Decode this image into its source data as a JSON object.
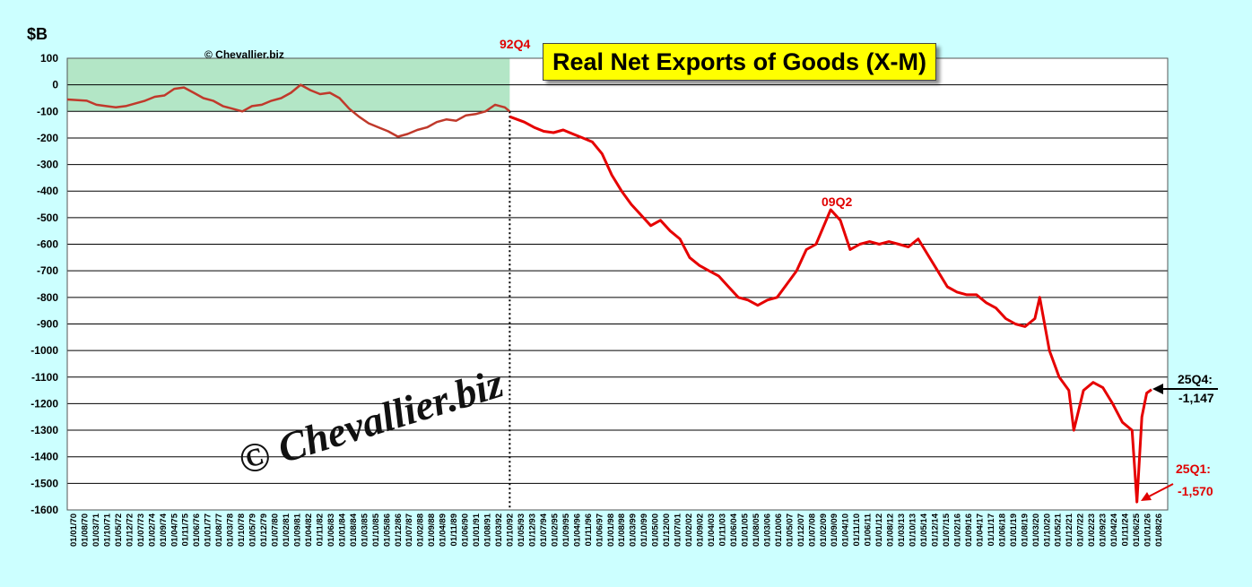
{
  "copyright_small": "© Chevallier.biz",
  "watermark": "© Chevallier.biz",
  "colors": {
    "background": "#ccffff",
    "plot_background": "#ffffff",
    "shade_fill": "#b3e6c6",
    "series_pre": "#c0392b",
    "series_post": "#e60000",
    "annotation_red": "#e00000"
  },
  "annotations": {
    "q92": "92Q4",
    "q09": "09Q2",
    "q25q4_label": "25Q4:",
    "q25q4_value": "-1,147",
    "q25q1_label": "25Q1:",
    "q25q1_value": "-1,570"
  },
  "chart_data": {
    "type": "line",
    "title": "Real Net Exports of Goods (X-M)",
    "ylabel": "$B",
    "ylim": [
      -1600,
      100
    ],
    "yticks": [
      100,
      0,
      -100,
      -200,
      -300,
      -400,
      -500,
      -600,
      -700,
      -800,
      -900,
      -1000,
      -1100,
      -1200,
      -1300,
      -1400,
      -1500,
      -1600
    ],
    "grid": true,
    "xticks": [
      "01/01/70",
      "01/08/70",
      "01/03/71",
      "01/10/71",
      "01/05/72",
      "01/12/72",
      "01/07/73",
      "01/02/74",
      "01/09/74",
      "01/04/75",
      "01/11/75",
      "01/06/76",
      "01/01/77",
      "01/08/77",
      "01/03/78",
      "01/10/78",
      "01/05/79",
      "01/12/79",
      "01/07/80",
      "01/02/81",
      "01/09/81",
      "01/04/82",
      "01/11/82",
      "01/06/83",
      "01/01/84",
      "01/08/84",
      "01/03/85",
      "01/10/85",
      "01/05/86",
      "01/12/86",
      "01/07/87",
      "01/02/88",
      "01/09/88",
      "01/04/89",
      "01/11/89",
      "01/06/90",
      "01/01/91",
      "01/08/91",
      "01/03/92",
      "01/10/92",
      "01/05/93",
      "01/12/93",
      "01/07/94",
      "01/02/95",
      "01/09/95",
      "01/04/96",
      "01/11/96",
      "01/06/97",
      "01/01/98",
      "01/08/98",
      "01/03/99",
      "01/10/99",
      "01/05/00",
      "01/12/00",
      "01/07/01",
      "01/02/02",
      "01/09/02",
      "01/04/03",
      "01/11/03",
      "01/06/04",
      "01/01/05",
      "01/08/05",
      "01/03/06",
      "01/10/06",
      "01/05/07",
      "01/12/07",
      "01/07/08",
      "01/02/09",
      "01/09/09",
      "01/04/10",
      "01/11/10",
      "01/06/11",
      "01/01/12",
      "01/08/12",
      "01/03/13",
      "01/10/13",
      "01/05/14",
      "01/12/14",
      "01/07/15",
      "01/02/16",
      "01/09/16",
      "01/04/17",
      "01/11/17",
      "01/06/18",
      "01/01/19",
      "01/08/19",
      "01/03/20",
      "01/10/20",
      "01/05/21",
      "01/12/21",
      "01/07/22",
      "01/02/23",
      "01/09/23",
      "01/04/24",
      "01/11/24",
      "01/06/25",
      "01/01/26",
      "01/08/26"
    ],
    "highlight_period": {
      "from": 1970.0,
      "to": 1992.75,
      "y_range": [
        -100,
        100
      ]
    },
    "marker_line_x": 1992.75,
    "series": [
      {
        "period": "1970-1992",
        "x": [
          1970.0,
          1971.0,
          1971.5,
          1972.0,
          1972.5,
          1973.0,
          1974.0,
          1974.5,
          1975.0,
          1975.5,
          1976.0,
          1976.5,
          1977.0,
          1977.5,
          1978.0,
          1978.5,
          1979.0,
          1979.5,
          1980.0,
          1980.5,
          1981.0,
          1981.5,
          1982.0,
          1982.5,
          1983.0,
          1983.5,
          1984.0,
          1984.5,
          1985.0,
          1985.5,
          1986.0,
          1986.5,
          1987.0,
          1987.5,
          1988.0,
          1988.5,
          1989.0,
          1989.5,
          1990.0,
          1990.5,
          1991.0,
          1991.5,
          1992.0,
          1992.5,
          1992.75
        ],
        "values": [
          -55,
          -60,
          -75,
          -80,
          -85,
          -80,
          -60,
          -45,
          -40,
          -15,
          -10,
          -30,
          -50,
          -60,
          -80,
          -90,
          -100,
          -80,
          -75,
          -60,
          -50,
          -30,
          0,
          -20,
          -35,
          -30,
          -50,
          -90,
          -120,
          -145,
          -160,
          -175,
          -195,
          -185,
          -170,
          -160,
          -140,
          -130,
          -135,
          -115,
          -110,
          -100,
          -75,
          -85,
          -100
        ]
      },
      {
        "period": "1992-2025",
        "x": [
          1992.75,
          1993.5,
          1994.0,
          1994.5,
          1995.0,
          1995.5,
          1996.0,
          1996.5,
          1997.0,
          1997.5,
          1998.0,
          1998.5,
          1999.0,
          1999.5,
          2000.0,
          2000.5,
          2001.0,
          2001.5,
          2002.0,
          2002.5,
          2003.0,
          2003.5,
          2004.0,
          2004.5,
          2005.0,
          2005.5,
          2006.0,
          2006.5,
          2007.0,
          2007.5,
          2008.0,
          2008.5,
          2009.25,
          2009.75,
          2010.25,
          2010.75,
          2011.25,
          2011.75,
          2012.25,
          2012.75,
          2013.25,
          2013.75,
          2014.25,
          2014.75,
          2015.25,
          2015.75,
          2016.25,
          2016.75,
          2017.25,
          2017.75,
          2018.25,
          2018.75,
          2019.25,
          2019.75,
          2020.0,
          2020.5,
          2021.0,
          2021.5,
          2021.75,
          2022.25,
          2022.75,
          2023.25,
          2023.75,
          2024.25,
          2024.75,
          2025.0,
          2025.25,
          2025.5,
          2025.75
        ],
        "values": [
          -120,
          -140,
          -160,
          -175,
          -180,
          -170,
          -185,
          -200,
          -215,
          -260,
          -340,
          -400,
          -450,
          -490,
          -530,
          -510,
          -550,
          -580,
          -650,
          -680,
          -700,
          -720,
          -760,
          -800,
          -810,
          -830,
          -810,
          -800,
          -750,
          -700,
          -620,
          -600,
          -470,
          -510,
          -620,
          -600,
          -590,
          -600,
          -590,
          -600,
          -610,
          -580,
          -640,
          -700,
          -760,
          -780,
          -790,
          -790,
          -820,
          -840,
          -880,
          -900,
          -910,
          -880,
          -800,
          -1000,
          -1100,
          -1150,
          -1300,
          -1150,
          -1120,
          -1140,
          -1200,
          -1270,
          -1300,
          -1570,
          -1250,
          -1160,
          -1147
        ]
      }
    ]
  }
}
